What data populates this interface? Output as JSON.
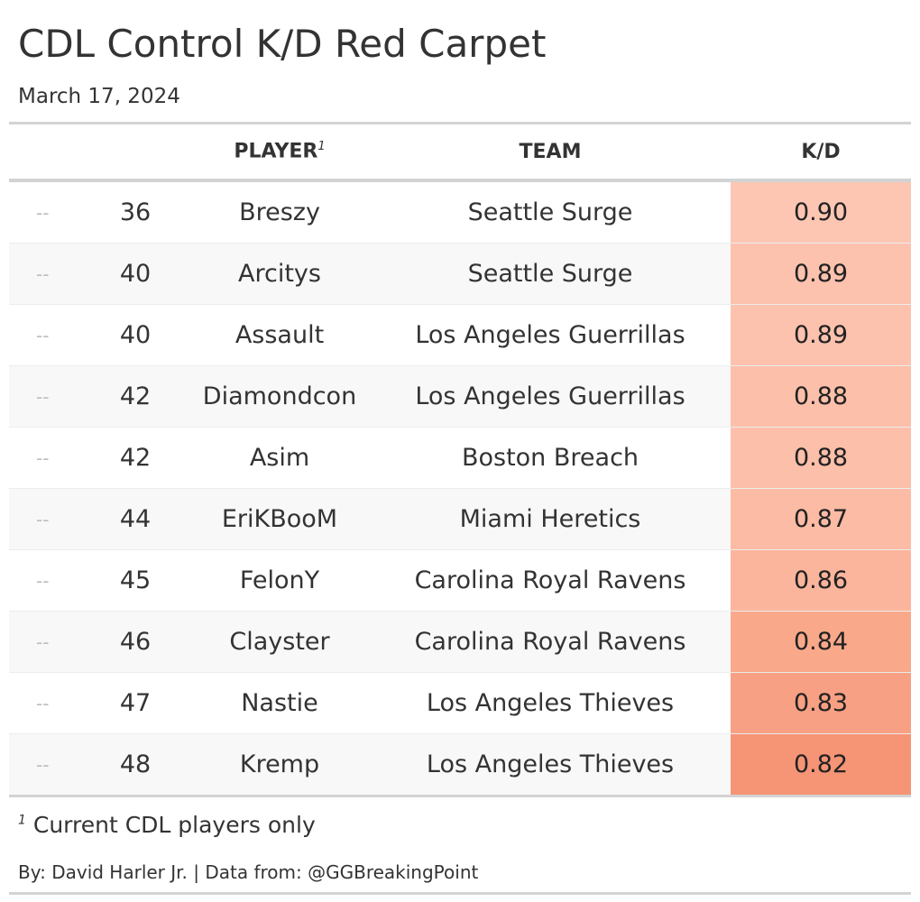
{
  "title": "CDL Control K/D Red Carpet",
  "subtitle": "March 17, 2024",
  "table": {
    "headers": {
      "change": "",
      "rank": "",
      "player": "PLAYER",
      "player_footnote_mark": "1",
      "team": "TEAM",
      "kd": "K/D"
    },
    "rows": [
      {
        "change": "--",
        "rank": "36",
        "player": "Breszy",
        "team": "Seattle Surge",
        "kd": "0.90",
        "kd_color": "#fcc6b3"
      },
      {
        "change": "--",
        "rank": "40",
        "player": "Arcitys",
        "team": "Seattle Surge",
        "kd": "0.89",
        "kd_color": "#fcc2ae"
      },
      {
        "change": "--",
        "rank": "40",
        "player": "Assault",
        "team": "Los Angeles Guerrillas",
        "kd": "0.89",
        "kd_color": "#fcc2ae"
      },
      {
        "change": "--",
        "rank": "42",
        "player": "Diamondcon",
        "team": "Los Angeles Guerrillas",
        "kd": "0.88",
        "kd_color": "#fcbfa9"
      },
      {
        "change": "--",
        "rank": "42",
        "player": "Asim",
        "team": "Boston Breach",
        "kd": "0.88",
        "kd_color": "#fcbfa9"
      },
      {
        "change": "--",
        "rank": "44",
        "player": "EriKBooM",
        "team": "Miami Heretics",
        "kd": "0.87",
        "kd_color": "#fcbba4"
      },
      {
        "change": "--",
        "rank": "45",
        "player": "FelonY",
        "team": "Carolina Royal Ravens",
        "kd": "0.86",
        "kd_color": "#fbb59c"
      },
      {
        "change": "--",
        "rank": "46",
        "player": "Clayster",
        "team": "Carolina Royal Ravens",
        "kd": "0.84",
        "kd_color": "#f9a98a"
      },
      {
        "change": "--",
        "rank": "47",
        "player": "Nastie",
        "team": "Los Angeles Thieves",
        "kd": "0.83",
        "kd_color": "#f8a083"
      },
      {
        "change": "--",
        "rank": "48",
        "player": "Kremp",
        "team": "Los Angeles Thieves",
        "kd": "0.82",
        "kd_color": "#f69476"
      }
    ]
  },
  "footnote": {
    "mark": "1",
    "text": "Current CDL players only"
  },
  "source": "By: David Harler Jr. | Data from: @GGBreakingPoint"
}
